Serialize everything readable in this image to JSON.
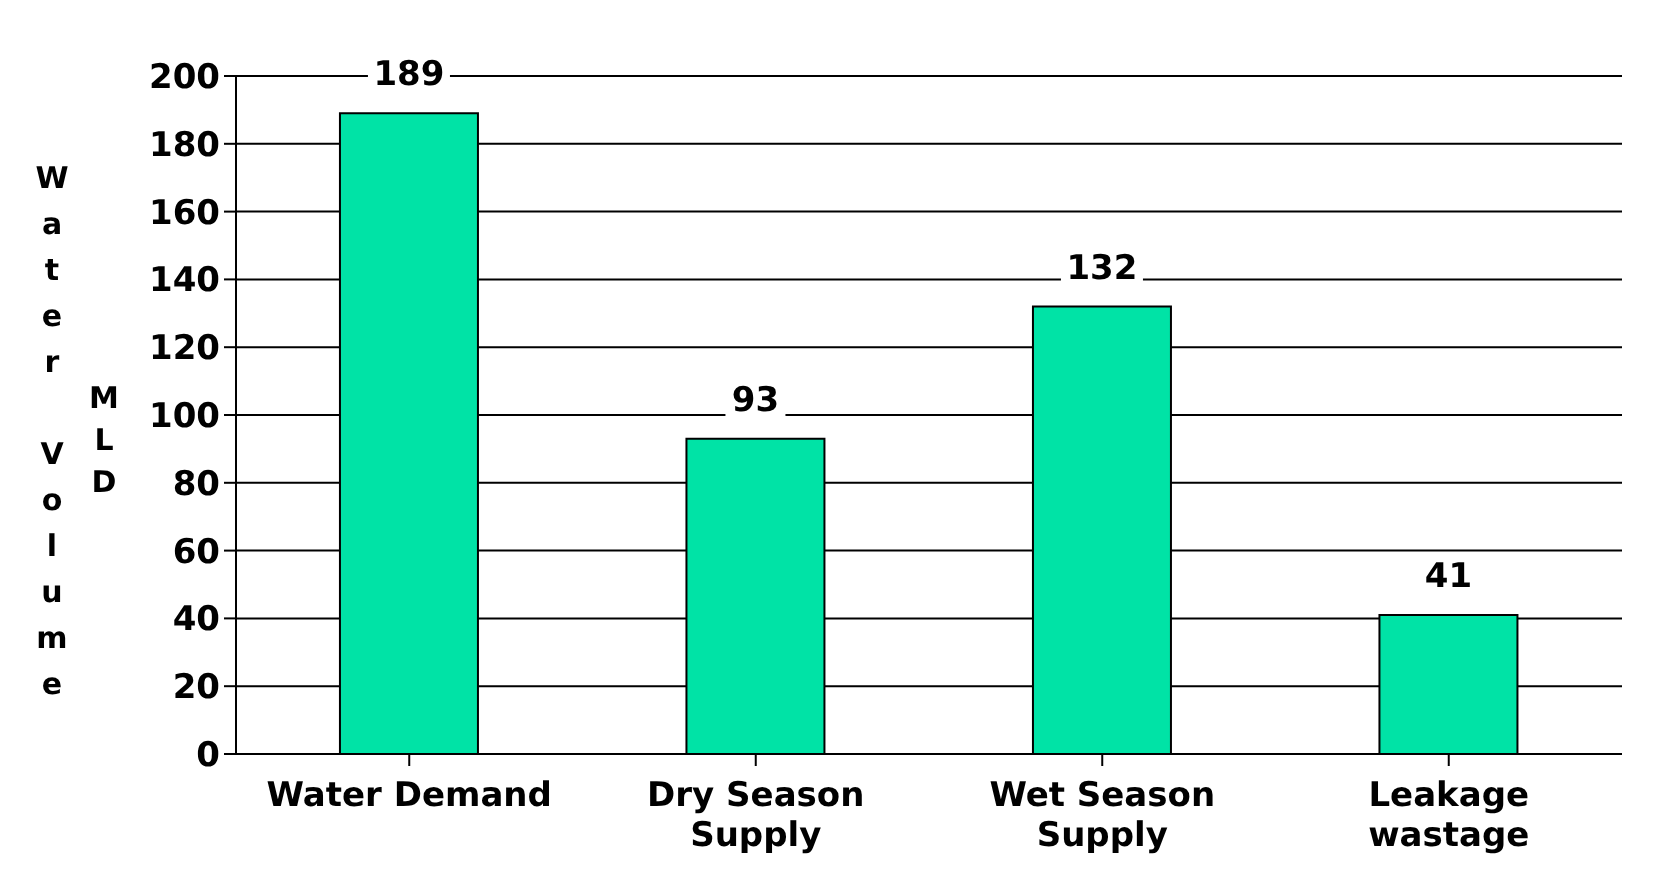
{
  "chart_data": {
    "type": "bar",
    "ylabel": "Water Volume\nMLD",
    "categories": [
      "Water Demand",
      "Dry Season Supply",
      "Wet Season Supply",
      "Leakage wastage"
    ],
    "values": [
      189,
      93,
      132,
      41
    ],
    "color": "#00e3a6",
    "ylim": [
      0,
      200
    ],
    "yticks": [
      0,
      20,
      40,
      60,
      80,
      100,
      120,
      140,
      160,
      180,
      200
    ],
    "grid": "y",
    "data_labels": true
  }
}
